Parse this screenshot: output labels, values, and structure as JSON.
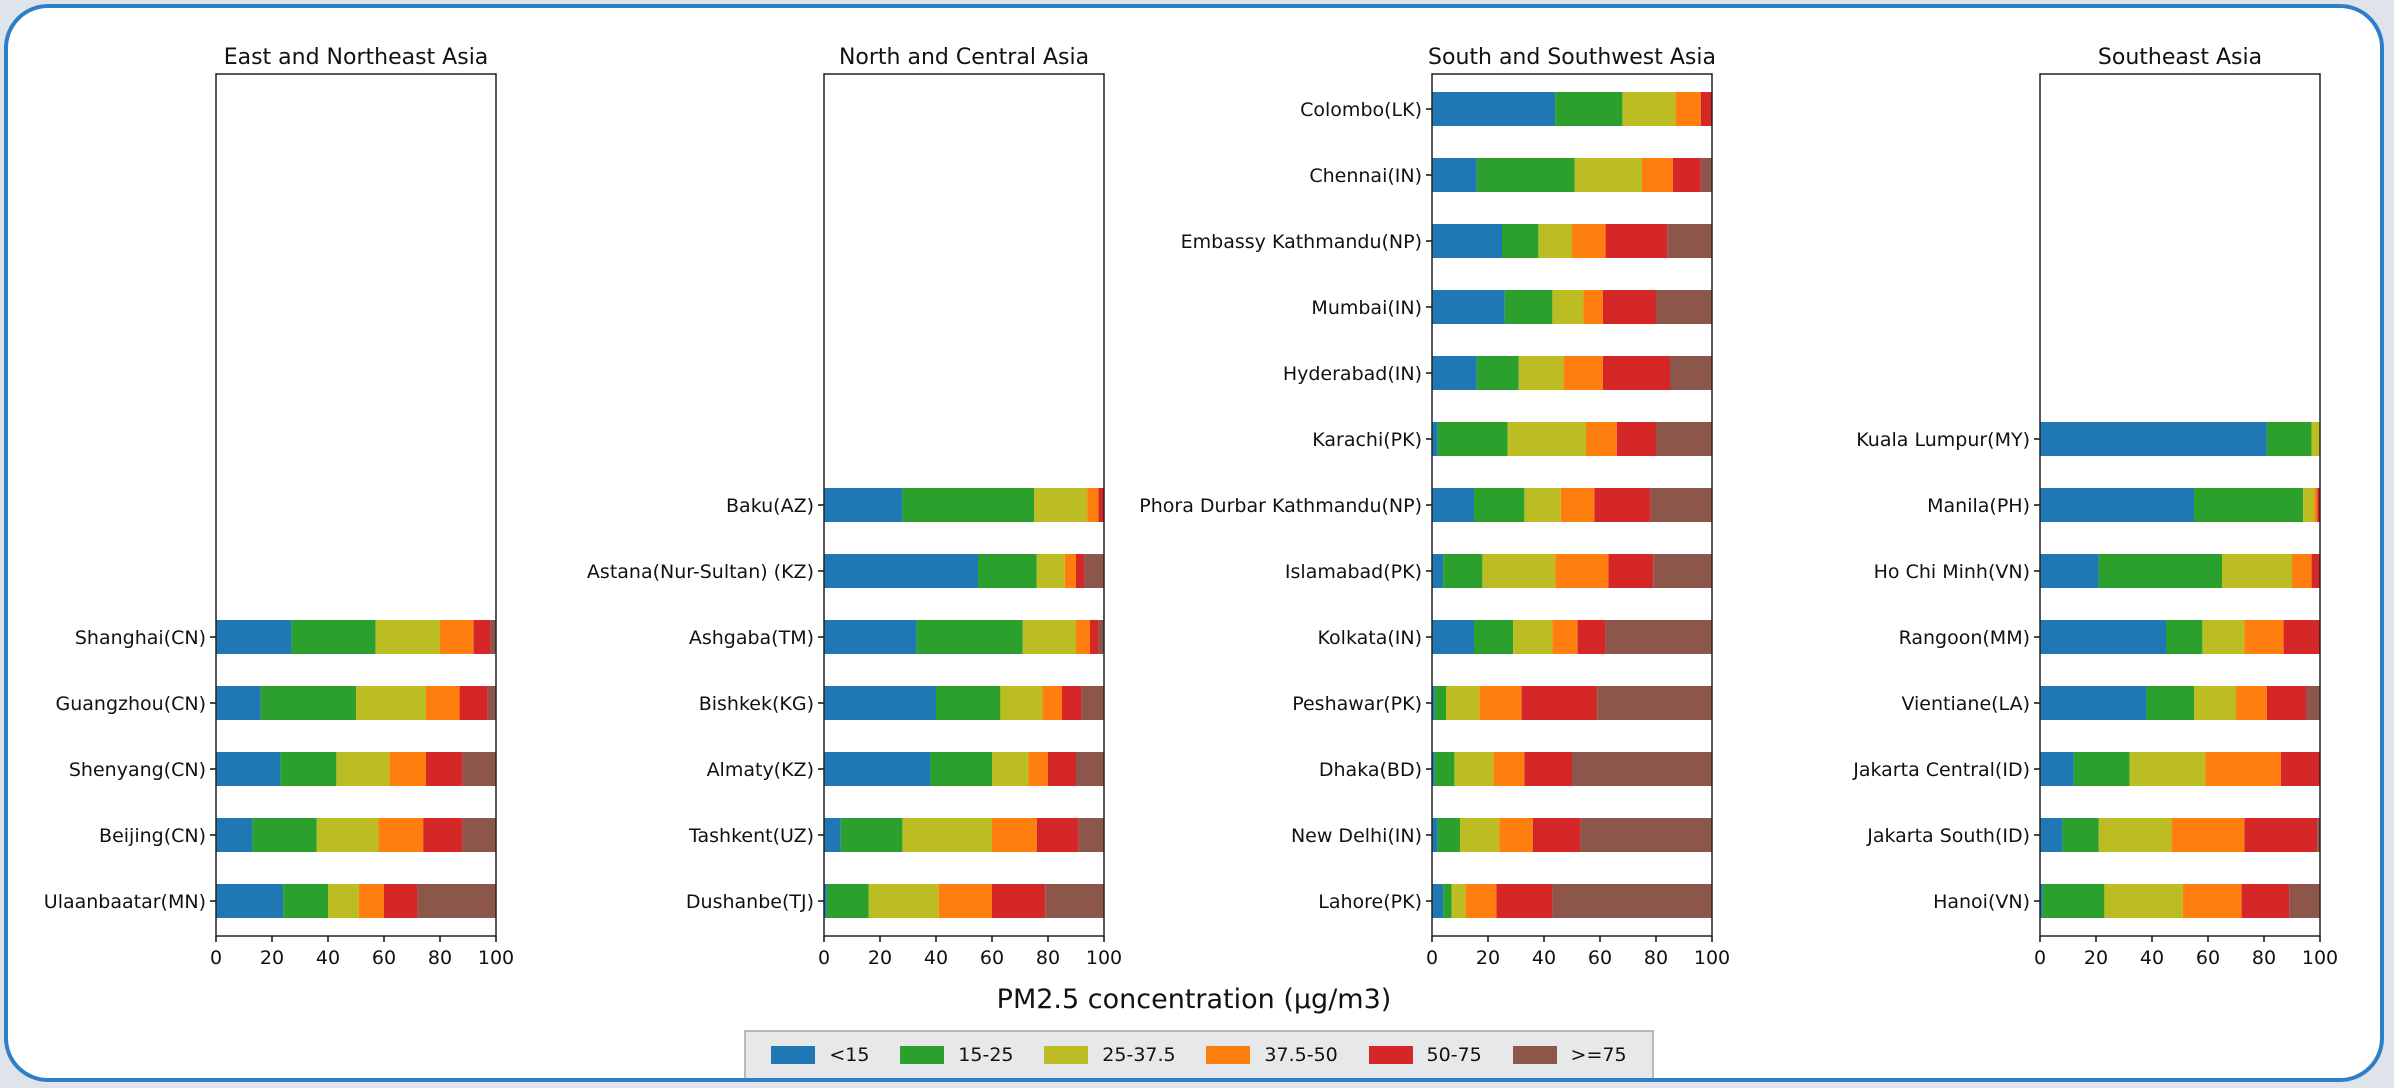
{
  "chart_data": {
    "type": "bar",
    "orientation": "horizontal-stacked",
    "xlabel": "PM2.5 concentration (µg/m3)",
    "xlim": [
      0,
      100
    ],
    "xticks": [
      0,
      20,
      40,
      60,
      80,
      100
    ],
    "legend_placement": "bottom-center",
    "series": [
      {
        "name": "<15",
        "color": "#1f77b4"
      },
      {
        "name": "15-25",
        "color": "#2ca02c"
      },
      {
        "name": "25-37.5",
        "color": "#bcbd22"
      },
      {
        "name": "37.5-50",
        "color": "#ff7f0e"
      },
      {
        "name": "50-75",
        "color": "#d62728"
      },
      {
        "name": ">=75",
        "color": "#8c564b"
      }
    ],
    "panels": [
      {
        "title": "East and Northeast Asia",
        "categories": [
          "Ulaanbaatar(MN)",
          "Beijing(CN)",
          "Shenyang(CN)",
          "Guangzhou(CN)",
          "Shanghai(CN)"
        ],
        "values": [
          [
            24,
            16,
            11,
            9,
            12,
            28
          ],
          [
            13,
            23,
            22,
            16,
            14,
            12
          ],
          [
            23,
            20,
            19,
            13,
            13,
            12
          ],
          [
            16,
            34,
            25,
            12,
            10,
            3
          ],
          [
            27,
            30,
            23,
            12,
            6,
            2
          ]
        ]
      },
      {
        "title": "North and Central Asia",
        "categories": [
          "Dushanbe(TJ)",
          "Tashkent(UZ)",
          "Almaty(KZ)",
          "Bishkek(KG)",
          "Ashgaba(TM)",
          "Astana(Nur-Sultan) (KZ)",
          "Baku(AZ)"
        ],
        "values": [
          [
            1,
            15,
            25,
            19,
            19,
            21
          ],
          [
            6,
            22,
            32,
            16,
            15,
            9
          ],
          [
            38,
            22,
            13,
            7,
            10,
            10
          ],
          [
            40,
            23,
            15,
            7,
            7,
            8
          ],
          [
            33,
            38,
            19,
            5,
            3,
            2
          ],
          [
            55,
            21,
            10,
            4,
            3,
            7
          ],
          [
            28,
            47,
            19,
            4,
            2,
            0
          ]
        ]
      },
      {
        "title": "South and Southwest Asia",
        "categories": [
          "Lahore(PK)",
          "New Delhi(IN)",
          "Dhaka(BD)",
          "Peshawar(PK)",
          "Kolkata(IN)",
          "Islamabad(PK)",
          "Phora Durbar Kathmandu(NP)",
          "Karachi(PK)",
          "Hyderabad(IN)",
          "Mumbai(IN)",
          "Embassy Kathmandu(NP)",
          "Chennai(IN)",
          "Colombo(LK)"
        ],
        "values": [
          [
            4,
            3,
            5,
            11,
            20,
            57
          ],
          [
            2,
            8,
            14,
            12,
            17,
            47
          ],
          [
            1,
            7,
            14,
            11,
            17,
            50
          ],
          [
            1,
            4,
            12,
            15,
            27,
            41
          ],
          [
            15,
            14,
            14,
            9,
            10,
            38
          ],
          [
            4,
            14,
            26,
            19,
            16,
            21
          ],
          [
            15,
            18,
            13,
            12,
            20,
            22
          ],
          [
            2,
            25,
            28,
            11,
            14,
            20
          ],
          [
            16,
            15,
            16,
            14,
            24,
            15
          ],
          [
            26,
            17,
            11,
            7,
            19,
            20
          ],
          [
            25,
            13,
            12,
            12,
            22,
            16
          ],
          [
            16,
            35,
            24,
            11,
            10,
            4
          ],
          [
            44,
            24,
            19,
            9,
            4,
            0
          ]
        ]
      },
      {
        "title": "Southeast Asia",
        "categories": [
          "Hanoi(VN)",
          "Jakarta South(ID)",
          "Jakarta Central(ID)",
          "Vientiane(LA)",
          "Rangoon(MM)",
          "Ho Chi Minh(VN)",
          "Manila(PH)",
          "Kuala Lumpur(MY)"
        ],
        "values": [
          [
            1,
            22,
            28,
            21,
            17,
            11
          ],
          [
            8,
            13,
            26,
            26,
            26,
            1
          ],
          [
            12,
            20,
            27,
            27,
            14,
            0
          ],
          [
            38,
            17,
            15,
            11,
            14,
            5
          ],
          [
            45,
            13,
            15,
            14,
            13,
            0
          ],
          [
            21,
            44,
            25,
            7,
            3,
            0
          ],
          [
            55,
            39,
            4,
            1,
            1,
            0
          ],
          [
            81,
            16,
            3,
            0,
            0,
            0
          ]
        ]
      }
    ]
  }
}
